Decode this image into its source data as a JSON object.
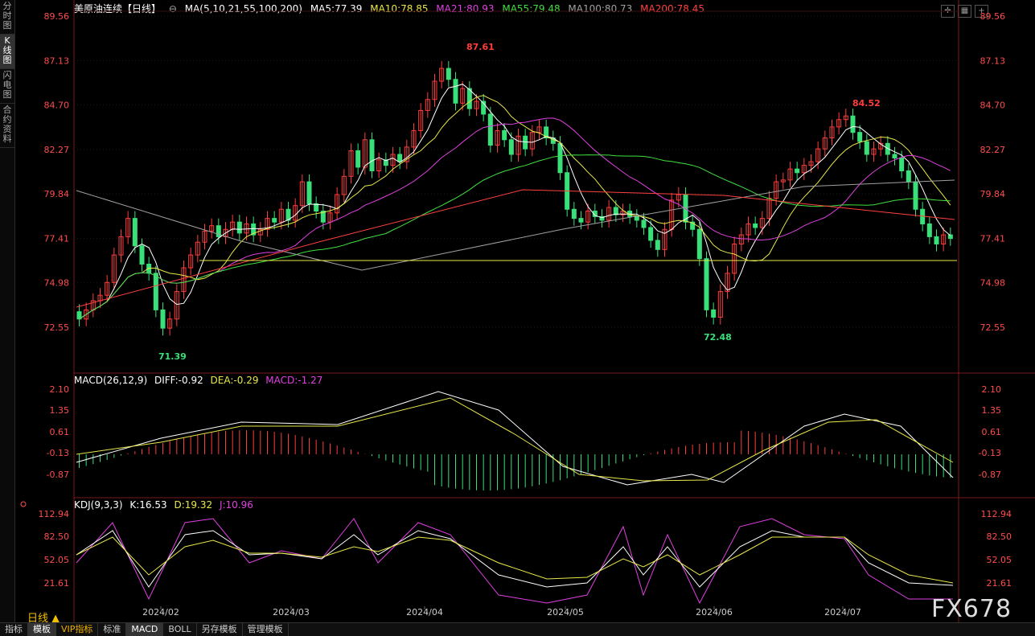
{
  "side_tabs": [
    {
      "label": "分时图",
      "active": false
    },
    {
      "label": "K线图",
      "active": true
    },
    {
      "label": "闪电图",
      "active": false
    },
    {
      "label": "合约资料",
      "active": false
    }
  ],
  "header": {
    "title": "美原油连续【日线】",
    "ma_params": "MA(5,10,21,55,100,200)",
    "ma5": "MA5:77.39",
    "ma10": "MA10:78.85",
    "ma21": "MA21:80.93",
    "ma55": "MA55:79.48",
    "ma100": "MA100:80.73",
    "ma200": "MA200:78.45"
  },
  "price_axis": [
    "89.56",
    "87.13",
    "84.70",
    "82.27",
    "79.84",
    "77.41",
    "74.98",
    "72.55"
  ],
  "annotations": {
    "high1": "87.61",
    "low1": "71.39",
    "high2": "84.52",
    "low2": "72.48"
  },
  "macd": {
    "params": "MACD(26,12,9)",
    "diff": "DIFF:-0.92",
    "dea": "DEA:-0.29",
    "macd": "MACD:-1.27",
    "axis": [
      "2.10",
      "1.35",
      "0.61",
      "-0.13",
      "-0.87"
    ]
  },
  "kdj": {
    "params": "KDJ(9,3,3)",
    "k": "K:16.53",
    "d": "D:19.32",
    "j": "J:10.96",
    "axis": [
      "112.94",
      "82.50",
      "52.05",
      "21.61"
    ]
  },
  "x_labels": [
    "2024/02",
    "2024/03",
    "2024/04",
    "2024/05",
    "2024/06",
    "2024/07"
  ],
  "period_button": "日线 ▲",
  "bottom_tabs": [
    {
      "label": "指标",
      "active": false,
      "vip": false
    },
    {
      "label": "模板",
      "active": true,
      "vip": false
    },
    {
      "label": "VIP指标",
      "active": false,
      "vip": true
    },
    {
      "label": "标准",
      "active": false,
      "vip": false
    },
    {
      "label": "MACD",
      "active": true,
      "vip": false
    },
    {
      "label": "BOLL",
      "active": false,
      "vip": false
    },
    {
      "label": "另存模板",
      "active": false,
      "vip": false
    },
    {
      "label": "管理模板",
      "active": false,
      "vip": false
    }
  ],
  "watermark": "FX678",
  "colors": {
    "up": "#ff3d3d",
    "down": "#39e07a",
    "ma5": "#ffffff",
    "ma10": "#e8e84a",
    "ma21": "#e040e0",
    "ma55": "#40e040",
    "ma100": "#a0a0a0",
    "ma200": "#ff4040",
    "axis": "#ff4d4d"
  }
}
